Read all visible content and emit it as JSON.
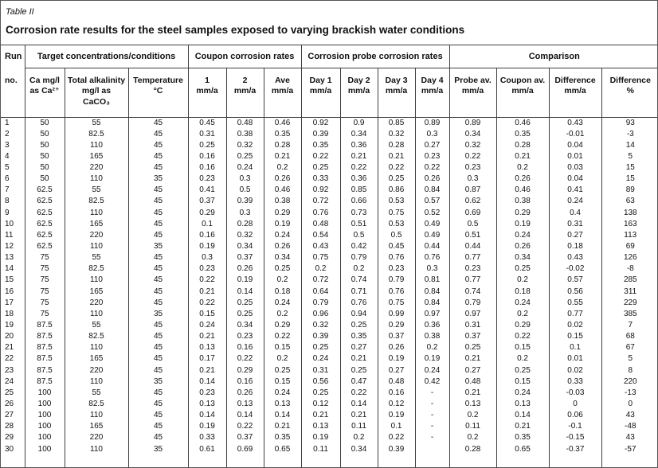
{
  "document": {
    "table_label": "Table II",
    "title": "Corrosion rate results for the steel samples exposed to varying brackish water conditions"
  },
  "header": {
    "run_group_label": "Run",
    "run_sub_label": "no.",
    "groups": [
      {
        "label": "Target concentrations/conditions"
      },
      {
        "label": "Coupon corrosion rates"
      },
      {
        "label": "Corrosion probe corrosion rates"
      },
      {
        "label": "Comparison"
      }
    ],
    "subheaders": [
      "Ca mg/l\nas Ca²⁺",
      "Total alkalinity\nmg/l as\nCaCO₃",
      "Temperature\n°C",
      "1\nmm/a",
      "2\nmm/a",
      "Ave\nmm/a",
      "Day 1\nmm/a",
      "Day 2\nmm/a",
      "Day 3\nmm/a",
      "Day 4\nmm/a",
      "Probe av.\nmm/a",
      "Coupon av.\nmm/a",
      "Difference\nmm/a",
      "Difference\n%"
    ]
  },
  "rows": [
    [
      "1",
      "50",
      "55",
      "45",
      "0.45",
      "0.48",
      "0.46",
      "0.92",
      "0.9",
      "0.85",
      "0.89",
      "0.89",
      "0.46",
      "0.43",
      "93"
    ],
    [
      "2",
      "50",
      "82.5",
      "45",
      "0.31",
      "0.38",
      "0.35",
      "0.39",
      "0.34",
      "0.32",
      "0.3",
      "0.34",
      "0.35",
      "-0.01",
      "-3"
    ],
    [
      "3",
      "50",
      "110",
      "45",
      "0.25",
      "0.32",
      "0.28",
      "0.35",
      "0.36",
      "0.28",
      "0.27",
      "0.32",
      "0.28",
      "0.04",
      "14"
    ],
    [
      "4",
      "50",
      "165",
      "45",
      "0.16",
      "0.25",
      "0.21",
      "0.22",
      "0.21",
      "0.21",
      "0.23",
      "0.22",
      "0.21",
      "0.01",
      "5"
    ],
    [
      "5",
      "50",
      "220",
      "45",
      "0.16",
      "0.24",
      "0.2",
      "0.25",
      "0.22",
      "0.22",
      "0.22",
      "0.23",
      "0.2",
      "0.03",
      "15"
    ],
    [
      "6",
      "50",
      "110",
      "35",
      "0.23",
      "0.3",
      "0.26",
      "0.33",
      "0.36",
      "0.25",
      "0.26",
      "0.3",
      "0.26",
      "0.04",
      "15"
    ],
    [
      "7",
      "62.5",
      "55",
      "45",
      "0.41",
      "0.5",
      "0.46",
      "0.92",
      "0.85",
      "0.86",
      "0.84",
      "0.87",
      "0.46",
      "0.41",
      "89"
    ],
    [
      "8",
      "62.5",
      "82.5",
      "45",
      "0.37",
      "0.39",
      "0.38",
      "0.72",
      "0.66",
      "0.53",
      "0.57",
      "0.62",
      "0.38",
      "0.24",
      "63"
    ],
    [
      "9",
      "62.5",
      "110",
      "45",
      "0.29",
      "0.3",
      "0.29",
      "0.76",
      "0.73",
      "0.75",
      "0.52",
      "0.69",
      "0.29",
      "0.4",
      "138"
    ],
    [
      "10",
      "62.5",
      "165",
      "45",
      "0.1",
      "0.28",
      "0.19",
      "0.48",
      "0.51",
      "0.53",
      "0.49",
      "0.5",
      "0.19",
      "0.31",
      "163"
    ],
    [
      "11",
      "62.5",
      "220",
      "45",
      "0.16",
      "0.32",
      "0.24",
      "0.54",
      "0.5",
      "0.5",
      "0.49",
      "0.51",
      "0.24",
      "0.27",
      "113"
    ],
    [
      "12",
      "62.5",
      "110",
      "35",
      "0.19",
      "0.34",
      "0.26",
      "0.43",
      "0.42",
      "0.45",
      "0.44",
      "0.44",
      "0.26",
      "0.18",
      "69"
    ],
    [
      "13",
      "75",
      "55",
      "45",
      "0.3",
      "0.37",
      "0.34",
      "0.75",
      "0.79",
      "0.76",
      "0.76",
      "0.77",
      "0.34",
      "0.43",
      "126"
    ],
    [
      "14",
      "75",
      "82.5",
      "45",
      "0.23",
      "0.26",
      "0.25",
      "0.2",
      "0.2",
      "0.23",
      "0.3",
      "0.23",
      "0.25",
      "-0.02",
      "-8"
    ],
    [
      "15",
      "75",
      "110",
      "45",
      "0.22",
      "0.19",
      "0.2",
      "0.72",
      "0.74",
      "0.79",
      "0.81",
      "0.77",
      "0.2",
      "0.57",
      "285"
    ],
    [
      "16",
      "75",
      "165",
      "45",
      "0.21",
      "0.14",
      "0.18",
      "0.64",
      "0.71",
      "0.76",
      "0.84",
      "0.74",
      "0.18",
      "0.56",
      "311"
    ],
    [
      "17",
      "75",
      "220",
      "45",
      "0.22",
      "0.25",
      "0.24",
      "0.79",
      "0.76",
      "0.75",
      "0.84",
      "0.79",
      "0.24",
      "0.55",
      "229"
    ],
    [
      "18",
      "75",
      "110",
      "35",
      "0.15",
      "0.25",
      "0.2",
      "0.96",
      "0.94",
      "0.99",
      "0.97",
      "0.97",
      "0.2",
      "0.77",
      "385"
    ],
    [
      "19",
      "87.5",
      "55",
      "45",
      "0.24",
      "0.34",
      "0.29",
      "0.32",
      "0.25",
      "0.29",
      "0.36",
      "0.31",
      "0.29",
      "0.02",
      "7"
    ],
    [
      "20",
      "87.5",
      "82.5",
      "45",
      "0.21",
      "0.23",
      "0.22",
      "0.39",
      "0.35",
      "0.37",
      "0.38",
      "0.37",
      "0.22",
      "0.15",
      "68"
    ],
    [
      "21",
      "87.5",
      "110",
      "45",
      "0.13",
      "0.16",
      "0.15",
      "0.25",
      "0.27",
      "0.26",
      "0.2",
      "0.25",
      "0.15",
      "0.1",
      "67"
    ],
    [
      "22",
      "87.5",
      "165",
      "45",
      "0.17",
      "0.22",
      "0.2",
      "0.24",
      "0.21",
      "0.19",
      "0.19",
      "0.21",
      "0.2",
      "0.01",
      "5"
    ],
    [
      "23",
      "87.5",
      "220",
      "45",
      "0.21",
      "0.29",
      "0.25",
      "0.31",
      "0.25",
      "0.27",
      "0.24",
      "0.27",
      "0.25",
      "0.02",
      "8"
    ],
    [
      "24",
      "87.5",
      "110",
      "35",
      "0.14",
      "0.16",
      "0.15",
      "0.56",
      "0.47",
      "0.48",
      "0.42",
      "0.48",
      "0.15",
      "0.33",
      "220"
    ],
    [
      "25",
      "100",
      "55",
      "45",
      "0.23",
      "0.26",
      "0.24",
      "0.25",
      "0.22",
      "0.16",
      "-",
      "0.21",
      "0.24",
      "-0.03",
      "-13"
    ],
    [
      "26",
      "100",
      "82.5",
      "45",
      "0.13",
      "0.13",
      "0.13",
      "0.12",
      "0.14",
      "0.12",
      "-",
      "0.13",
      "0.13",
      "0",
      "0"
    ],
    [
      "27",
      "100",
      "110",
      "45",
      "0.14",
      "0.14",
      "0.14",
      "0.21",
      "0.21",
      "0.19",
      "-",
      "0.2",
      "0.14",
      "0.06",
      "43"
    ],
    [
      "28",
      "100",
      "165",
      "45",
      "0.19",
      "0.22",
      "0.21",
      "0.13",
      "0.11",
      "0.1",
      "-",
      "0.11",
      "0.21",
      "-0.1",
      "-48"
    ],
    [
      "29",
      "100",
      "220",
      "45",
      "0.33",
      "0.37",
      "0.35",
      "0.19",
      "0.2",
      "0.22",
      "-",
      "0.2",
      "0.35",
      "-0.15",
      "43"
    ],
    [
      "30",
      "100",
      "110",
      "35",
      "0.61",
      "0.69",
      "0.65",
      "0.11",
      "0.34",
      "0.39",
      "",
      "0.28",
      "0.65",
      "-0.37",
      "-57"
    ]
  ],
  "colors": {
    "text": "#111111",
    "border": "#3f3f3f",
    "background": "#ffffff"
  }
}
